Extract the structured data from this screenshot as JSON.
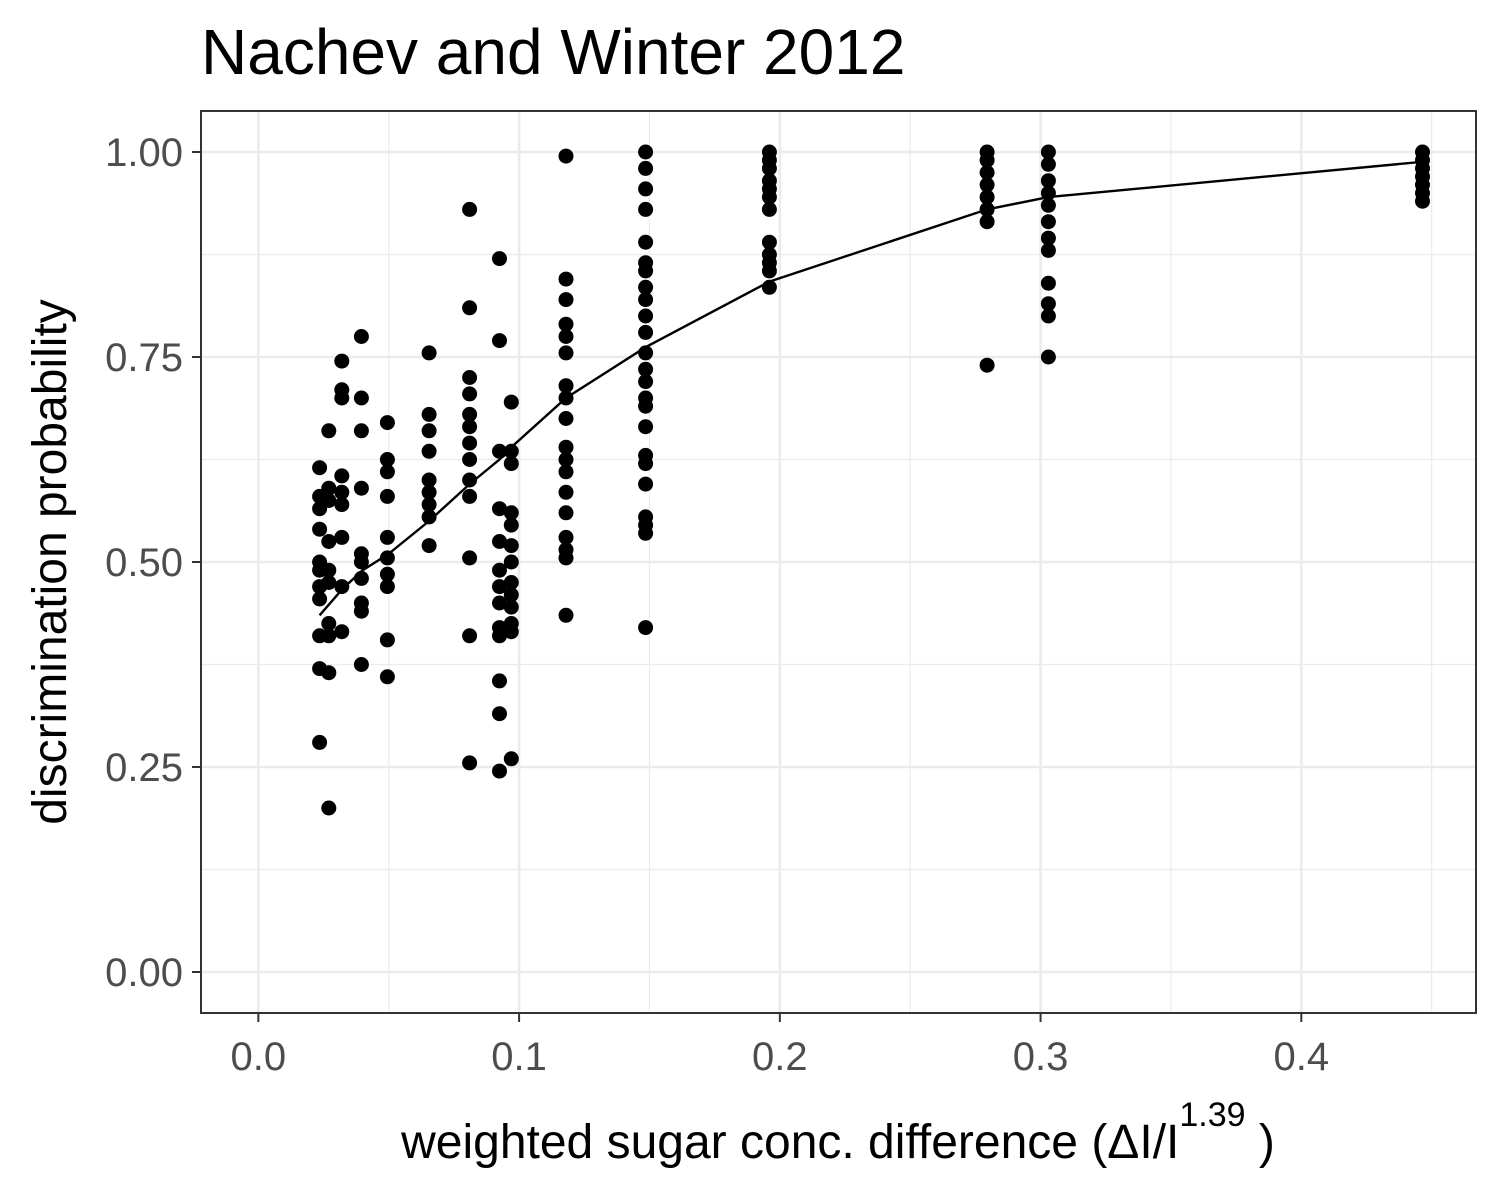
{
  "chart_data": {
    "type": "scatter",
    "title": "Nachev and Winter 2012",
    "xlabel": {
      "main": "weighted  sugar conc.  difference (ΔI/I",
      "superscript": "1.39",
      "close": " )"
    },
    "ylabel": "discrimination probability",
    "xlim": [
      -0.022,
      0.467
    ],
    "ylim": [
      -0.05,
      1.05
    ],
    "x_ticks": [
      0.0,
      0.1,
      0.2,
      0.3,
      0.4
    ],
    "x_tick_labels": [
      "0.0",
      "0.1",
      "0.2",
      "0.3",
      "0.4"
    ],
    "y_ticks": [
      0.0,
      0.25,
      0.5,
      0.75,
      1.0
    ],
    "y_tick_labels": [
      "0.00",
      "0.25",
      "0.50",
      "0.75",
      "1.00"
    ],
    "grid": true,
    "colors": {
      "points": "#000000",
      "line": "#000000",
      "grid": "#ebebeb",
      "panel_border": "#333333",
      "tick_text": "#4d4d4d"
    },
    "points": [
      [
        0.0235,
        0.615
      ],
      [
        0.0235,
        0.58
      ],
      [
        0.0235,
        0.565
      ],
      [
        0.0235,
        0.54
      ],
      [
        0.0235,
        0.5
      ],
      [
        0.0235,
        0.49
      ],
      [
        0.0235,
        0.47
      ],
      [
        0.0235,
        0.455
      ],
      [
        0.0235,
        0.41
      ],
      [
        0.0235,
        0.37
      ],
      [
        0.0235,
        0.28
      ],
      [
        0.027,
        0.66
      ],
      [
        0.027,
        0.59
      ],
      [
        0.027,
        0.575
      ],
      [
        0.027,
        0.525
      ],
      [
        0.027,
        0.49
      ],
      [
        0.027,
        0.475
      ],
      [
        0.027,
        0.425
      ],
      [
        0.027,
        0.41
      ],
      [
        0.027,
        0.365
      ],
      [
        0.027,
        0.2
      ],
      [
        0.032,
        0.745
      ],
      [
        0.032,
        0.71
      ],
      [
        0.032,
        0.7
      ],
      [
        0.032,
        0.605
      ],
      [
        0.032,
        0.585
      ],
      [
        0.032,
        0.57
      ],
      [
        0.032,
        0.53
      ],
      [
        0.032,
        0.47
      ],
      [
        0.032,
        0.415
      ],
      [
        0.0395,
        0.775
      ],
      [
        0.0395,
        0.7
      ],
      [
        0.0395,
        0.66
      ],
      [
        0.0395,
        0.59
      ],
      [
        0.0395,
        0.51
      ],
      [
        0.0395,
        0.5
      ],
      [
        0.0395,
        0.48
      ],
      [
        0.0395,
        0.45
      ],
      [
        0.0395,
        0.44
      ],
      [
        0.0395,
        0.375
      ],
      [
        0.0495,
        0.67
      ],
      [
        0.0495,
        0.625
      ],
      [
        0.0495,
        0.61
      ],
      [
        0.0495,
        0.58
      ],
      [
        0.0495,
        0.53
      ],
      [
        0.0495,
        0.505
      ],
      [
        0.0495,
        0.485
      ],
      [
        0.0495,
        0.47
      ],
      [
        0.0495,
        0.405
      ],
      [
        0.0495,
        0.36
      ],
      [
        0.0655,
        0.755
      ],
      [
        0.0655,
        0.68
      ],
      [
        0.0655,
        0.66
      ],
      [
        0.0655,
        0.635
      ],
      [
        0.0655,
        0.6
      ],
      [
        0.0655,
        0.585
      ],
      [
        0.0655,
        0.57
      ],
      [
        0.0655,
        0.555
      ],
      [
        0.0655,
        0.52
      ],
      [
        0.081,
        0.93
      ],
      [
        0.081,
        0.81
      ],
      [
        0.081,
        0.725
      ],
      [
        0.081,
        0.705
      ],
      [
        0.081,
        0.68
      ],
      [
        0.081,
        0.665
      ],
      [
        0.081,
        0.645
      ],
      [
        0.081,
        0.625
      ],
      [
        0.081,
        0.6
      ],
      [
        0.081,
        0.58
      ],
      [
        0.081,
        0.505
      ],
      [
        0.081,
        0.41
      ],
      [
        0.081,
        0.255
      ],
      [
        0.0925,
        0.87
      ],
      [
        0.0925,
        0.77
      ],
      [
        0.0925,
        0.635
      ],
      [
        0.0925,
        0.565
      ],
      [
        0.0925,
        0.525
      ],
      [
        0.0925,
        0.49
      ],
      [
        0.0925,
        0.47
      ],
      [
        0.0925,
        0.45
      ],
      [
        0.0925,
        0.42
      ],
      [
        0.0925,
        0.41
      ],
      [
        0.0925,
        0.355
      ],
      [
        0.0925,
        0.315
      ],
      [
        0.0925,
        0.245
      ],
      [
        0.097,
        0.695
      ],
      [
        0.097,
        0.635
      ],
      [
        0.097,
        0.62
      ],
      [
        0.097,
        0.56
      ],
      [
        0.097,
        0.545
      ],
      [
        0.097,
        0.52
      ],
      [
        0.097,
        0.5
      ],
      [
        0.097,
        0.475
      ],
      [
        0.097,
        0.46
      ],
      [
        0.097,
        0.445
      ],
      [
        0.097,
        0.425
      ],
      [
        0.097,
        0.415
      ],
      [
        0.097,
        0.26
      ],
      [
        0.118,
        0.995
      ],
      [
        0.118,
        0.845
      ],
      [
        0.118,
        0.82
      ],
      [
        0.118,
        0.79
      ],
      [
        0.118,
        0.775
      ],
      [
        0.118,
        0.755
      ],
      [
        0.118,
        0.715
      ],
      [
        0.118,
        0.7
      ],
      [
        0.118,
        0.675
      ],
      [
        0.118,
        0.64
      ],
      [
        0.118,
        0.625
      ],
      [
        0.118,
        0.61
      ],
      [
        0.118,
        0.585
      ],
      [
        0.118,
        0.56
      ],
      [
        0.118,
        0.53
      ],
      [
        0.118,
        0.515
      ],
      [
        0.118,
        0.505
      ],
      [
        0.118,
        0.435
      ],
      [
        0.1485,
        1.0
      ],
      [
        0.1485,
        0.98
      ],
      [
        0.1485,
        0.955
      ],
      [
        0.1485,
        0.93
      ],
      [
        0.1485,
        0.89
      ],
      [
        0.1485,
        0.865
      ],
      [
        0.1485,
        0.855
      ],
      [
        0.1485,
        0.835
      ],
      [
        0.1485,
        0.82
      ],
      [
        0.1485,
        0.8
      ],
      [
        0.1485,
        0.78
      ],
      [
        0.1485,
        0.755
      ],
      [
        0.1485,
        0.735
      ],
      [
        0.1485,
        0.72
      ],
      [
        0.1485,
        0.7
      ],
      [
        0.1485,
        0.69
      ],
      [
        0.1485,
        0.665
      ],
      [
        0.1485,
        0.63
      ],
      [
        0.1485,
        0.62
      ],
      [
        0.1485,
        0.595
      ],
      [
        0.1485,
        0.555
      ],
      [
        0.1485,
        0.545
      ],
      [
        0.1485,
        0.535
      ],
      [
        0.1485,
        0.42
      ],
      [
        0.196,
        1.0
      ],
      [
        0.196,
        0.99
      ],
      [
        0.196,
        0.98
      ],
      [
        0.196,
        0.965
      ],
      [
        0.196,
        0.955
      ],
      [
        0.196,
        0.945
      ],
      [
        0.196,
        0.93
      ],
      [
        0.196,
        0.89
      ],
      [
        0.196,
        0.875
      ],
      [
        0.196,
        0.865
      ],
      [
        0.196,
        0.855
      ],
      [
        0.196,
        0.835
      ],
      [
        0.2795,
        1.0
      ],
      [
        0.2795,
        0.99
      ],
      [
        0.2795,
        0.975
      ],
      [
        0.2795,
        0.96
      ],
      [
        0.2795,
        0.945
      ],
      [
        0.2795,
        0.93
      ],
      [
        0.2795,
        0.915
      ],
      [
        0.2795,
        0.74
      ],
      [
        0.303,
        1.0
      ],
      [
        0.303,
        0.985
      ],
      [
        0.303,
        0.965
      ],
      [
        0.303,
        0.95
      ],
      [
        0.303,
        0.935
      ],
      [
        0.303,
        0.915
      ],
      [
        0.303,
        0.895
      ],
      [
        0.303,
        0.88
      ],
      [
        0.303,
        0.84
      ],
      [
        0.303,
        0.815
      ],
      [
        0.303,
        0.8
      ],
      [
        0.303,
        0.75
      ],
      [
        0.4465,
        1.0
      ],
      [
        0.4465,
        0.99
      ],
      [
        0.4465,
        0.98
      ],
      [
        0.4465,
        0.97
      ],
      [
        0.4465,
        0.96
      ],
      [
        0.4465,
        0.95
      ],
      [
        0.4465,
        0.94
      ]
    ],
    "fit_line": [
      [
        0.0235,
        0.435
      ],
      [
        0.0325,
        0.468
      ],
      [
        0.04,
        0.49
      ],
      [
        0.05,
        0.51
      ],
      [
        0.0655,
        0.55
      ],
      [
        0.081,
        0.595
      ],
      [
        0.0925,
        0.625
      ],
      [
        0.097,
        0.64
      ],
      [
        0.118,
        0.7
      ],
      [
        0.1485,
        0.762
      ],
      [
        0.196,
        0.842
      ],
      [
        0.2795,
        0.93
      ],
      [
        0.303,
        0.945
      ],
      [
        0.4465,
        0.988
      ]
    ]
  }
}
